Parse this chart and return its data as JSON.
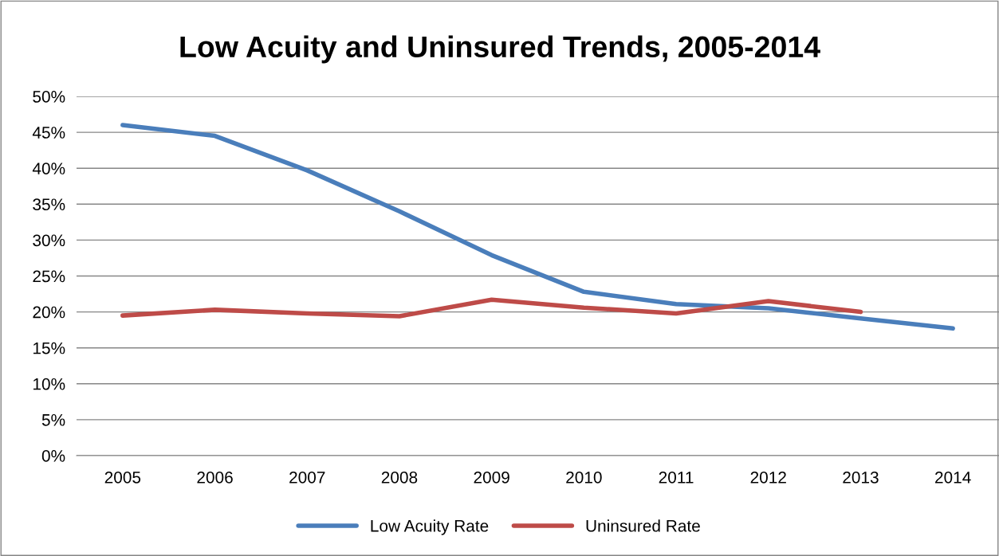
{
  "chart_data": {
    "type": "line",
    "title": "Low Acuity and Uninsured Trends, 2005-2014",
    "categories": [
      "2005",
      "2006",
      "2007",
      "2008",
      "2009",
      "2010",
      "2011",
      "2012",
      "2013",
      "2014"
    ],
    "series": [
      {
        "name": "Low Acuity Rate",
        "color": "#4a7ebb",
        "values": [
          46.0,
          44.5,
          39.7,
          34.0,
          27.9,
          22.8,
          21.1,
          20.5,
          19.1,
          17.7
        ]
      },
      {
        "name": "Uninsured Rate",
        "color": "#be4b48",
        "values": [
          19.5,
          20.3,
          19.8,
          19.4,
          21.7,
          20.6,
          19.8,
          21.5,
          20.0,
          null
        ]
      }
    ],
    "ylim": [
      0,
      50
    ],
    "yticks": [
      {
        "value": 0,
        "label": "0%"
      },
      {
        "value": 5,
        "label": "5%"
      },
      {
        "value": 10,
        "label": "10%"
      },
      {
        "value": 15,
        "label": "15%"
      },
      {
        "value": 20,
        "label": "20%"
      },
      {
        "value": 25,
        "label": "25%"
      },
      {
        "value": 30,
        "label": "30%"
      },
      {
        "value": 35,
        "label": "35%"
      },
      {
        "value": 40,
        "label": "40%"
      },
      {
        "value": 45,
        "label": "45%"
      },
      {
        "value": 50,
        "label": "50%"
      }
    ],
    "grid": "y",
    "legend": "bottom",
    "marker": "none",
    "line_style": "solid"
  }
}
